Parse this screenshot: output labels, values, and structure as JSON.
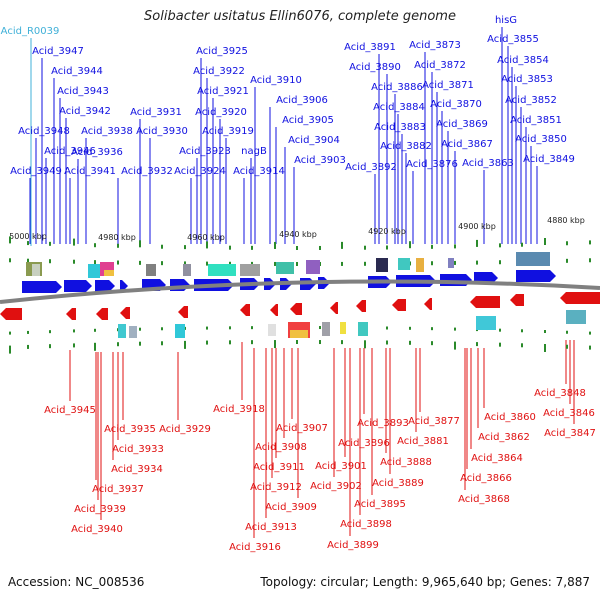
{
  "header": {
    "title": "Solibacter usitatus Ellin6076, complete genome"
  },
  "footer": {
    "accession": "Accession: NC_008536",
    "summary": "Topology: circular; Length: 9,965,640 bp; Genes: 7,887"
  },
  "colors": {
    "forward_strand": "#1010e0",
    "reverse_strand": "#e01010",
    "rna_label": "#40b0d8",
    "backbone": "#808080",
    "tick": "#2a8a2a",
    "scale_text": "#222222"
  },
  "scale": {
    "ticks": [
      "5000 kbp",
      "4980 kbp",
      "4960 kbp",
      "4940 kbp",
      "4920 kbp",
      "4900 kbp",
      "4880 kbp"
    ]
  },
  "top_labels": [
    {
      "text": "Acid_R0039",
      "kind": "rna"
    },
    {
      "text": "Acid_3947",
      "kind": "gene"
    },
    {
      "text": "Acid_3944",
      "kind": "gene"
    },
    {
      "text": "Acid_3943",
      "kind": "gene"
    },
    {
      "text": "Acid_3942",
      "kind": "gene"
    },
    {
      "text": "Acid_3948",
      "kind": "gene"
    },
    {
      "text": "Acid_3938",
      "kind": "gene"
    },
    {
      "text": "Acid_3946",
      "kind": "gene"
    },
    {
      "text": "Acid_3936",
      "kind": "gene"
    },
    {
      "text": "Acid_3949",
      "kind": "gene"
    },
    {
      "text": "Acid_3941",
      "kind": "gene"
    },
    {
      "text": "Acid_3932",
      "kind": "gene"
    },
    {
      "text": "Acid_3931",
      "kind": "gene"
    },
    {
      "text": "Acid_3930",
      "kind": "gene"
    },
    {
      "text": "Acid_3925",
      "kind": "gene"
    },
    {
      "text": "Acid_3922",
      "kind": "gene"
    },
    {
      "text": "Acid_3921",
      "kind": "gene"
    },
    {
      "text": "Acid_3920",
      "kind": "gene"
    },
    {
      "text": "Acid_3919",
      "kind": "gene"
    },
    {
      "text": "Acid_3923",
      "kind": "gene"
    },
    {
      "text": "Acid_3924",
      "kind": "gene"
    },
    {
      "text": "Acid_3910",
      "kind": "gene"
    },
    {
      "text": "Acid_3906",
      "kind": "gene"
    },
    {
      "text": "Acid_3905",
      "kind": "gene"
    },
    {
      "text": "Acid_3904",
      "kind": "gene"
    },
    {
      "text": "nagB",
      "kind": "gene"
    },
    {
      "text": "Acid_3903",
      "kind": "gene"
    },
    {
      "text": "Acid_3914",
      "kind": "gene"
    },
    {
      "text": "Acid_3891",
      "kind": "gene"
    },
    {
      "text": "Acid_3890",
      "kind": "gene"
    },
    {
      "text": "Acid_3886",
      "kind": "gene"
    },
    {
      "text": "Acid_3884",
      "kind": "gene"
    },
    {
      "text": "Acid_3883",
      "kind": "gene"
    },
    {
      "text": "Acid_3882",
      "kind": "gene"
    },
    {
      "text": "Acid_3892",
      "kind": "gene"
    },
    {
      "text": "Acid_3873",
      "kind": "gene"
    },
    {
      "text": "Acid_3872",
      "kind": "gene"
    },
    {
      "text": "Acid_3871",
      "kind": "gene"
    },
    {
      "text": "Acid_3870",
      "kind": "gene"
    },
    {
      "text": "Acid_3869",
      "kind": "gene"
    },
    {
      "text": "Acid_3867",
      "kind": "gene"
    },
    {
      "text": "Acid_3876",
      "kind": "gene"
    },
    {
      "text": "Acid_3863",
      "kind": "gene"
    },
    {
      "text": "hisG",
      "kind": "gene"
    },
    {
      "text": "Acid_3855",
      "kind": "gene"
    },
    {
      "text": "Acid_3854",
      "kind": "gene"
    },
    {
      "text": "Acid_3853",
      "kind": "gene"
    },
    {
      "text": "Acid_3852",
      "kind": "gene"
    },
    {
      "text": "Acid_3851",
      "kind": "gene"
    },
    {
      "text": "Acid_3850",
      "kind": "gene"
    },
    {
      "text": "Acid_3849",
      "kind": "gene"
    }
  ],
  "bottom_labels": [
    {
      "text": "Acid_3945"
    },
    {
      "text": "Acid_3935"
    },
    {
      "text": "Acid_3933"
    },
    {
      "text": "Acid_3934"
    },
    {
      "text": "Acid_3937"
    },
    {
      "text": "Acid_3939"
    },
    {
      "text": "Acid_3940"
    },
    {
      "text": "Acid_3929"
    },
    {
      "text": "Acid_3918"
    },
    {
      "text": "Acid_3907"
    },
    {
      "text": "Acid_3908"
    },
    {
      "text": "Acid_3911"
    },
    {
      "text": "Acid_3912"
    },
    {
      "text": "Acid_3909"
    },
    {
      "text": "Acid_3913"
    },
    {
      "text": "Acid_3916"
    },
    {
      "text": "Acid_3893"
    },
    {
      "text": "Acid_3896"
    },
    {
      "text": "Acid_3901"
    },
    {
      "text": "Acid_3902"
    },
    {
      "text": "Acid_3888"
    },
    {
      "text": "Acid_3889"
    },
    {
      "text": "Acid_3895"
    },
    {
      "text": "Acid_3898"
    },
    {
      "text": "Acid_3899"
    },
    {
      "text": "Acid_3877"
    },
    {
      "text": "Acid_3881"
    },
    {
      "text": "Acid_3860"
    },
    {
      "text": "Acid_3862"
    },
    {
      "text": "Acid_3864"
    },
    {
      "text": "Acid_3866"
    },
    {
      "text": "Acid_3868"
    },
    {
      "text": "Acid_3848"
    },
    {
      "text": "Acid_3846"
    },
    {
      "text": "Acid_3847"
    }
  ]
}
